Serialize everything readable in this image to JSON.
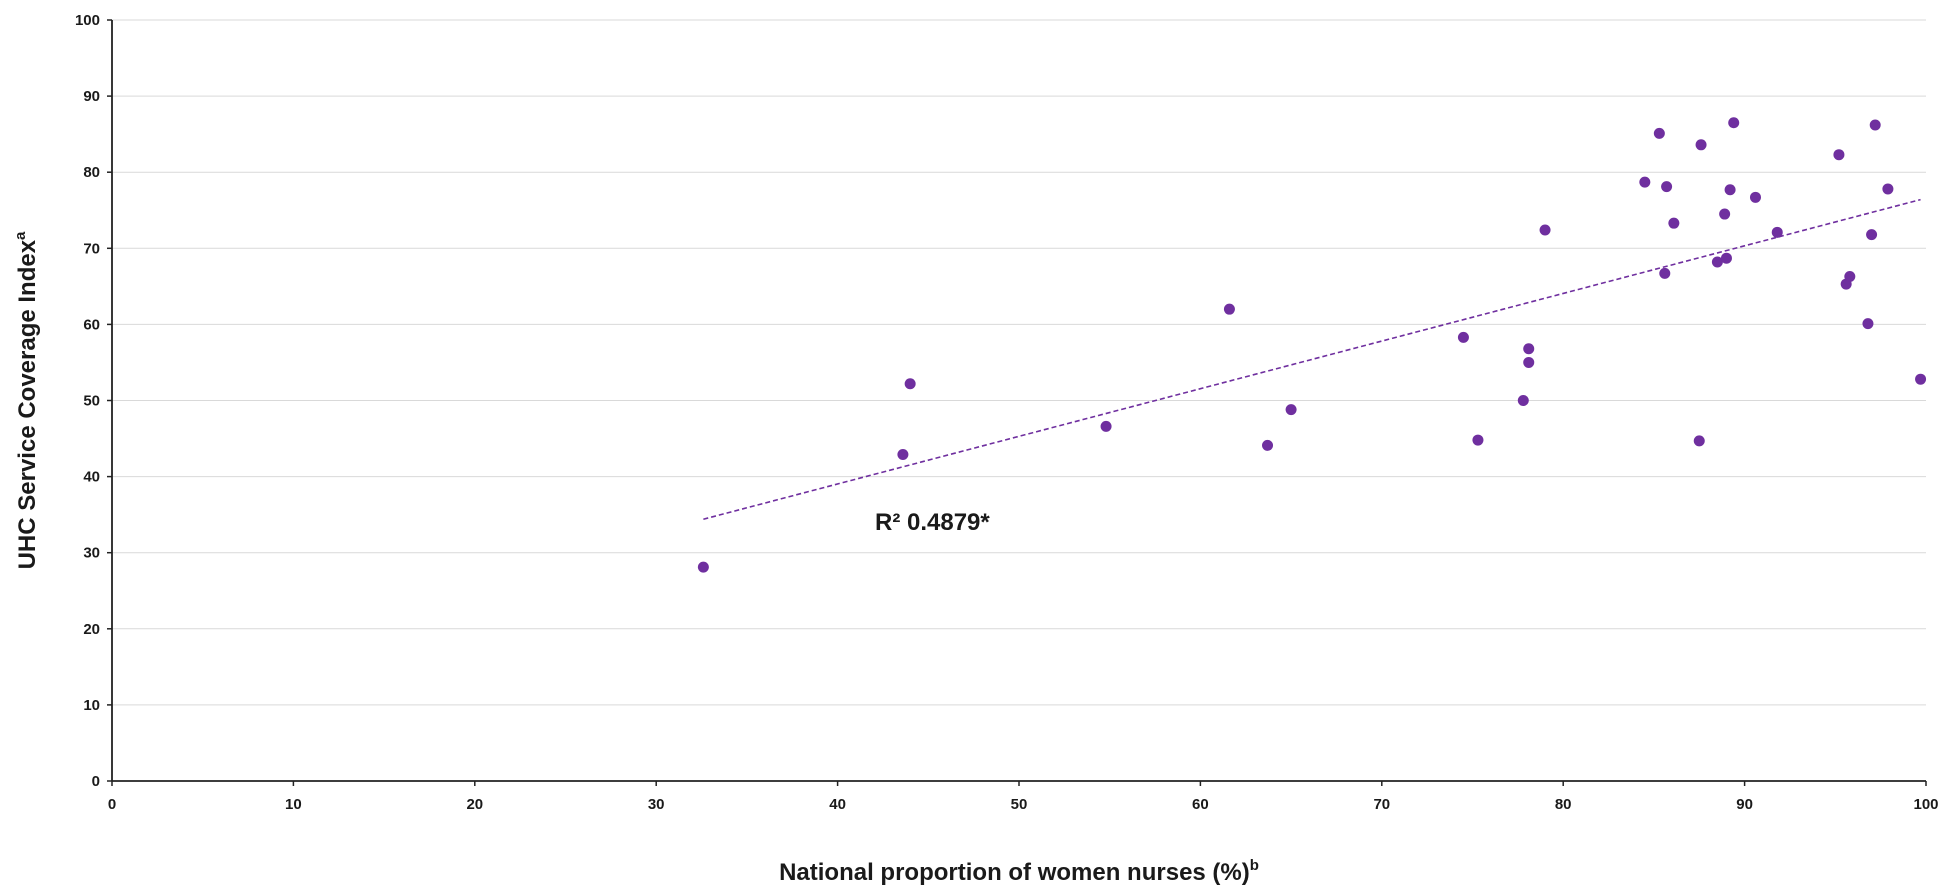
{
  "chart_data": {
    "type": "scatter",
    "xlabel": "National proportion of women nurses (%)",
    "xlabel_superscript": "b",
    "ylabel": "UHC Service Coverage Index",
    "ylabel_superscript": "a",
    "xlim": [
      0,
      100
    ],
    "ylim": [
      0,
      100
    ],
    "x_ticks": [
      0,
      10,
      20,
      30,
      40,
      50,
      60,
      70,
      80,
      90,
      100
    ],
    "y_ticks": [
      0,
      10,
      20,
      30,
      40,
      50,
      60,
      70,
      80,
      90,
      100
    ],
    "grid": "horizontal",
    "marker_color": "#6f2f9f",
    "trendline_color": "#6f2f9f",
    "annotation": "R² 0.4879*",
    "trendline": {
      "x": [
        32.6,
        99.7
      ],
      "y": [
        34.4,
        76.4
      ]
    },
    "points": [
      {
        "x": 32.6,
        "y": 28.1
      },
      {
        "x": 43.6,
        "y": 42.9
      },
      {
        "x": 44.0,
        "y": 52.2
      },
      {
        "x": 54.8,
        "y": 46.6
      },
      {
        "x": 61.6,
        "y": 62.0
      },
      {
        "x": 63.7,
        "y": 44.1
      },
      {
        "x": 65.0,
        "y": 48.8
      },
      {
        "x": 74.5,
        "y": 58.3
      },
      {
        "x": 75.3,
        "y": 44.8
      },
      {
        "x": 77.8,
        "y": 50.0
      },
      {
        "x": 78.1,
        "y": 55.0
      },
      {
        "x": 78.1,
        "y": 56.8
      },
      {
        "x": 79.0,
        "y": 72.4
      },
      {
        "x": 84.5,
        "y": 78.7
      },
      {
        "x": 85.3,
        "y": 85.1
      },
      {
        "x": 85.6,
        "y": 66.7
      },
      {
        "x": 85.7,
        "y": 78.1
      },
      {
        "x": 86.1,
        "y": 73.3
      },
      {
        "x": 87.5,
        "y": 44.7
      },
      {
        "x": 87.6,
        "y": 83.6
      },
      {
        "x": 88.5,
        "y": 68.2
      },
      {
        "x": 88.9,
        "y": 74.5
      },
      {
        "x": 89.0,
        "y": 68.7
      },
      {
        "x": 89.2,
        "y": 77.7
      },
      {
        "x": 89.4,
        "y": 86.5
      },
      {
        "x": 90.6,
        "y": 76.7
      },
      {
        "x": 91.8,
        "y": 72.1
      },
      {
        "x": 95.2,
        "y": 82.3
      },
      {
        "x": 95.6,
        "y": 65.3
      },
      {
        "x": 95.8,
        "y": 66.3
      },
      {
        "x": 96.8,
        "y": 60.1
      },
      {
        "x": 97.0,
        "y": 71.8
      },
      {
        "x": 97.2,
        "y": 86.2
      },
      {
        "x": 97.9,
        "y": 77.8
      },
      {
        "x": 99.7,
        "y": 52.8
      }
    ]
  }
}
